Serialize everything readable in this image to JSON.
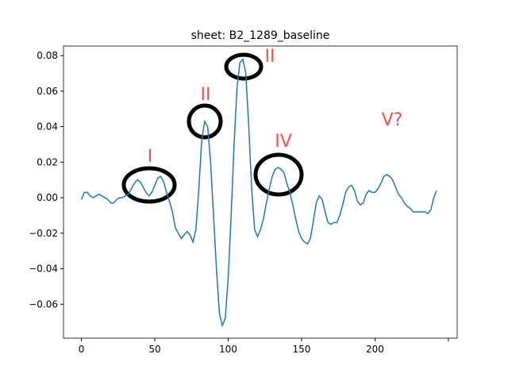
{
  "chart_data": {
    "type": "line",
    "title": "sheet: B2_1289_baseline",
    "color": "#1f77b4",
    "x": [
      0,
      2,
      4,
      6,
      8,
      10,
      12,
      14,
      16,
      18,
      20,
      22,
      24,
      26,
      28,
      30,
      32,
      34,
      36,
      38,
      40,
      42,
      44,
      46,
      48,
      50,
      52,
      54,
      56,
      58,
      60,
      62,
      64,
      66,
      68,
      70,
      72,
      74,
      76,
      78,
      80,
      82,
      84,
      86,
      88,
      90,
      92,
      94,
      96,
      98,
      100,
      102,
      104,
      106,
      108,
      110,
      112,
      114,
      116,
      118,
      120,
      122,
      124,
      126,
      128,
      130,
      132,
      134,
      136,
      138,
      140,
      142,
      144,
      146,
      148,
      150,
      152,
      154,
      156,
      158,
      160,
      162,
      164,
      166,
      168,
      170,
      172,
      174,
      176,
      178,
      180,
      182,
      184,
      186,
      188,
      190,
      192,
      194,
      196,
      198,
      200,
      202,
      204,
      206,
      208,
      210,
      212,
      214,
      216,
      218,
      220,
      222,
      224,
      226,
      228,
      230,
      232,
      234,
      236,
      238,
      240,
      242
    ],
    "values": [
      -0.001,
      0.003,
      0.003,
      0.001,
      0.0,
      0.001,
      0.002,
      0.001,
      0.0,
      -0.001,
      -0.003,
      -0.003,
      -0.001,
      0.0,
      0.0,
      0.001,
      0.002,
      0.005,
      0.008,
      0.01,
      0.009,
      0.006,
      0.003,
      0.001,
      0.003,
      0.007,
      0.011,
      0.012,
      0.009,
      0.003,
      -0.002,
      -0.008,
      -0.017,
      -0.02,
      -0.023,
      -0.021,
      -0.019,
      -0.021,
      -0.025,
      -0.018,
      0.005,
      0.033,
      0.043,
      0.04,
      0.02,
      -0.01,
      -0.04,
      -0.065,
      -0.072,
      -0.068,
      -0.045,
      -0.01,
      0.03,
      0.062,
      0.076,
      0.078,
      0.07,
      0.04,
      0.005,
      -0.018,
      -0.022,
      -0.018,
      -0.012,
      -0.003,
      0.005,
      0.012,
      0.016,
      0.017,
      0.016,
      0.014,
      0.008,
      0.003,
      -0.004,
      -0.012,
      -0.019,
      -0.023,
      -0.025,
      -0.026,
      -0.023,
      -0.013,
      -0.003,
      0.001,
      -0.001,
      -0.008,
      -0.014,
      -0.015,
      -0.014,
      -0.014,
      -0.01,
      -0.004,
      0.003,
      0.006,
      0.007,
      0.004,
      -0.002,
      -0.004,
      -0.003,
      0.002,
      0.004,
      0.003,
      0.003,
      0.005,
      0.008,
      0.012,
      0.013,
      0.012,
      0.01,
      0.006,
      0.002,
      0.0,
      -0.003,
      -0.005,
      -0.006,
      -0.008,
      -0.008,
      -0.008,
      -0.008,
      -0.008,
      -0.009,
      -0.007,
      0.0,
      0.004
    ],
    "xlim": [
      -12.2,
      256
    ],
    "ylim": [
      -0.0791,
      0.0854
    ],
    "xticks": [
      0,
      50,
      100,
      150,
      200,
      {
        "value": 250,
        "label": null
      }
    ],
    "yticks": [
      {
        "value": -0.06,
        "label": "−0.06"
      },
      {
        "value": -0.04,
        "label": "−0.04"
      },
      {
        "value": -0.02,
        "label": "−0.02"
      },
      {
        "value": 0,
        "label": "0.00"
      },
      {
        "value": 0.02,
        "label": "0.02"
      },
      {
        "value": 0.04,
        "label": "0.04"
      },
      {
        "value": 0.06,
        "label": "0.06"
      },
      {
        "value": 0.08,
        "label": "0.08"
      }
    ],
    "annotations": [
      {
        "text": "I"
      },
      {
        "text": "II"
      },
      {
        "text": "II"
      },
      {
        "text": "IV"
      },
      {
        "text": "V?"
      }
    ]
  }
}
